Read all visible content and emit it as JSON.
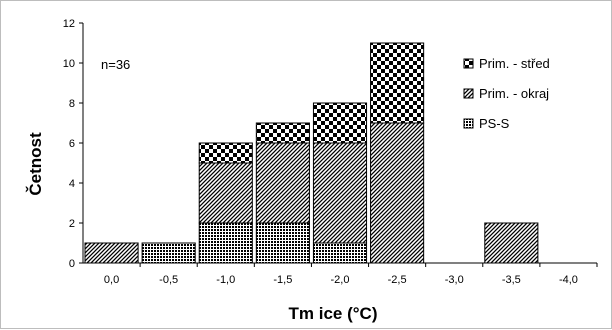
{
  "chart_data": {
    "type": "bar",
    "stacked": true,
    "categories": [
      "0,0",
      "-0,5",
      "-1,0",
      "-1,5",
      "-2,0",
      "-2,5",
      "-3,0",
      "-3,5",
      "-4,0"
    ],
    "series": [
      {
        "name": "PS-S",
        "pattern": "dense-dots",
        "values": [
          0,
          1,
          2,
          2,
          1,
          0,
          0,
          0,
          0
        ]
      },
      {
        "name": "Prim. - okraj",
        "pattern": "diagonal-hatch",
        "values": [
          1,
          0,
          3,
          4,
          5,
          7,
          0,
          2,
          0
        ]
      },
      {
        "name": "Prim. - střed",
        "pattern": "checker",
        "values": [
          0,
          0,
          1,
          1,
          2,
          4,
          0,
          0,
          0
        ]
      }
    ],
    "legend_order": [
      "Prim. - střed",
      "Prim. - okraj",
      "PS-S"
    ],
    "xlabel": "Tm ice (°C)",
    "ylabel": "Četnost",
    "ylim": [
      0,
      12
    ],
    "yticks": [
      0,
      2,
      4,
      6,
      8,
      10,
      12
    ],
    "annotation": "n=36",
    "grid": false,
    "legend_position": "top-right"
  }
}
